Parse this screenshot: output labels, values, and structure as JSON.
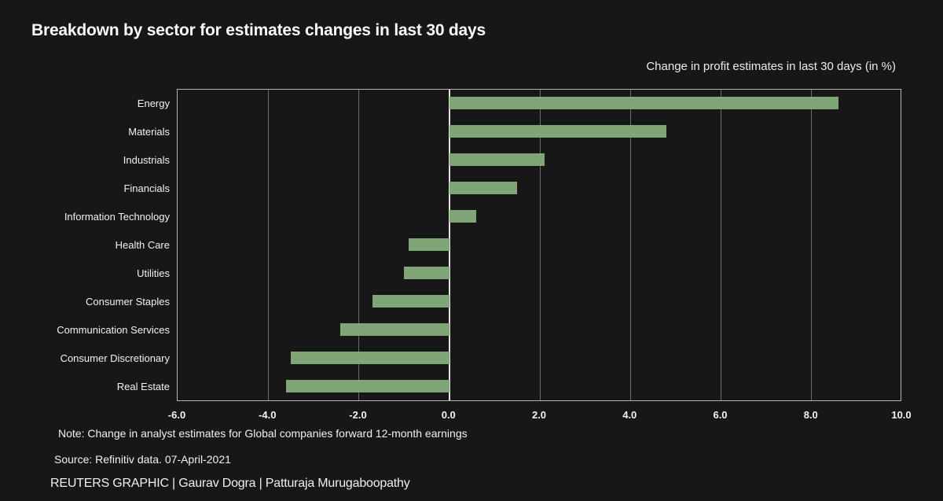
{
  "title": "Breakdown by sector for estimates changes in last 30 days",
  "subtitle": "Change in profit estimates in last 30 days (in %)",
  "chart_data": {
    "type": "bar",
    "orientation": "horizontal",
    "title": "Breakdown by sector for estimates changes in last 30 days",
    "axis_title": "Change in profit estimates in last 30 days (in %)",
    "categories": [
      "Energy",
      "Materials",
      "Industrials",
      "Financials",
      "Information Technology",
      "Health Care",
      "Utilities",
      "Consumer Staples",
      "Communication Services",
      "Consumer Discretionary",
      "Real Estate"
    ],
    "values": [
      8.6,
      4.8,
      2.1,
      1.5,
      0.6,
      -0.9,
      -1.0,
      -1.7,
      -2.4,
      -3.5,
      -3.6
    ],
    "xlim": [
      -6.0,
      10.0
    ],
    "x_tick_values": [
      -6,
      -4,
      -2,
      0,
      2,
      4,
      6,
      8,
      10
    ],
    "x_tick_labels": [
      "-6.0",
      "-4.0",
      "-2.0",
      "0.0",
      "2.0",
      "4.0",
      "6.0",
      "8.0",
      "10.0"
    ],
    "grid": true,
    "legend": false,
    "bar_color": "#80a577"
  },
  "footer": {
    "note": "Note: Change in analyst estimates for Global companies forward 12-month earnings",
    "source": "Source: Refinitiv data.  07-April-2021",
    "credit": "REUTERS GRAPHIC | Gaurav Dogra | Patturaja Murugaboopathy"
  },
  "colors": {
    "background": "#171717",
    "bar": "#80a577",
    "gridline": "#6b6b6b",
    "zero_line": "#e2e2e2",
    "plot_border": "#b4b4b4",
    "text": "#f5f5f5"
  }
}
